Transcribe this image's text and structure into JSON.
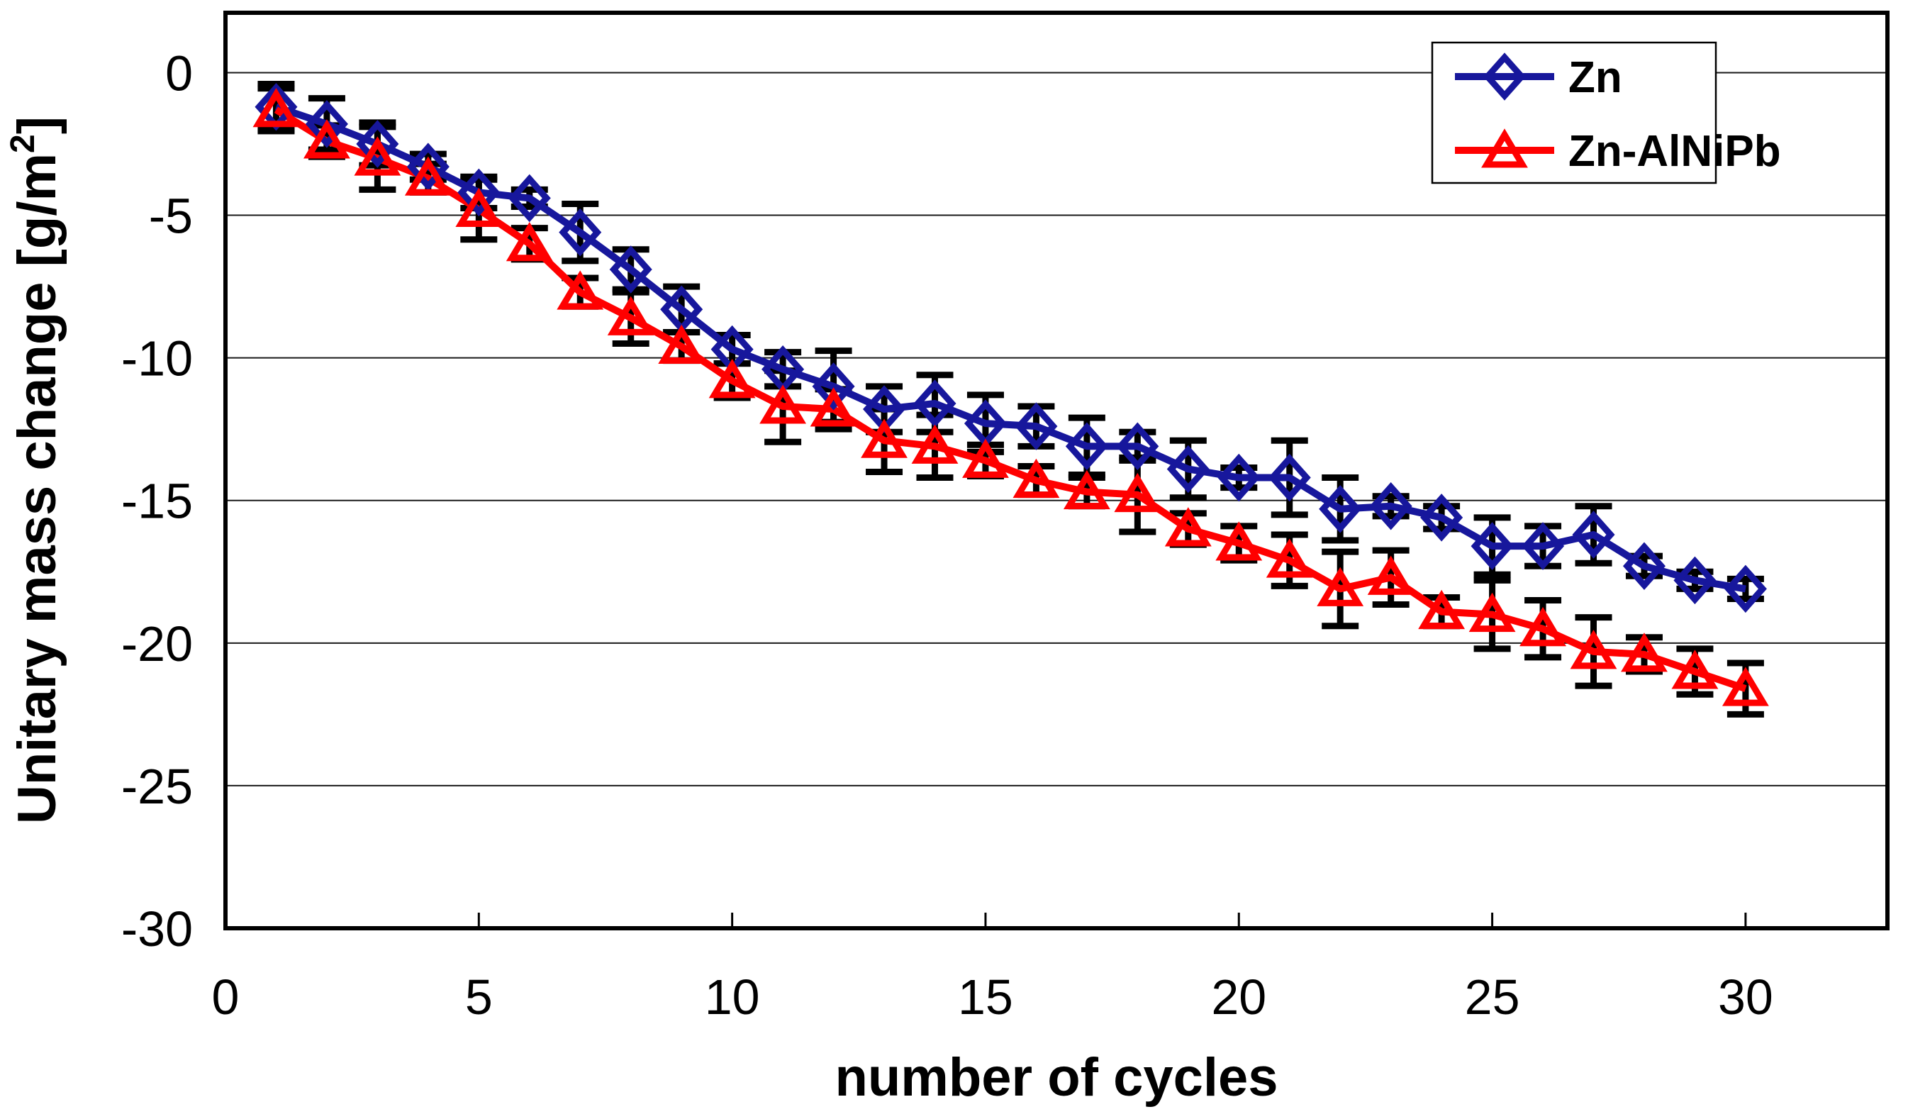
{
  "chart_data": {
    "type": "line",
    "title": "",
    "xlabel": "number of cycles",
    "ylabel": "Unitary mass change [g/m2]",
    "ylabel_prefix": "Unitary mass change [g/m",
    "ylabel_sup": "2",
    "ylabel_suffix": "]",
    "x_ticks": [
      0,
      5,
      10,
      15,
      20,
      25,
      30
    ],
    "y_ticks": [
      0,
      -5,
      -10,
      -15,
      -20,
      -25,
      -30
    ],
    "xlim": [
      0,
      32.8
    ],
    "ylim": [
      -30,
      2.1
    ],
    "grid": "horizontal",
    "legend_position": "top-right",
    "background_color": "#ffffff",
    "grid_color": "#1a1a1a",
    "frame_color": "#000000",
    "error_bar_color": "#000000",
    "x": [
      1,
      2,
      3,
      4,
      5,
      6,
      7,
      8,
      9,
      10,
      11,
      12,
      13,
      14,
      15,
      16,
      17,
      18,
      19,
      20,
      21,
      22,
      23,
      24,
      25,
      26,
      27,
      28,
      29,
      30
    ],
    "series": [
      {
        "name": "Zn",
        "color": "#17179C",
        "marker": "diamond",
        "values": [
          -1.2,
          -1.8,
          -2.5,
          -3.3,
          -4.2,
          -4.4,
          -5.6,
          -6.9,
          -8.3,
          -9.7,
          -10.4,
          -11.0,
          -11.8,
          -11.6,
          -12.3,
          -12.4,
          -13.1,
          -13.1,
          -13.9,
          -14.2,
          -14.2,
          -15.3,
          -15.2,
          -15.6,
          -16.6,
          -16.6,
          -16.2,
          -17.3,
          -17.8,
          -18.1
        ],
        "errors": [
          0.8,
          0.9,
          0.75,
          0.45,
          0.55,
          0.3,
          1.0,
          0.7,
          0.8,
          0.5,
          0.6,
          1.25,
          0.8,
          1.0,
          1.0,
          0.7,
          1.0,
          0.5,
          1.0,
          0.35,
          1.3,
          1.1,
          0.35,
          0.4,
          1.0,
          0.7,
          1.0,
          0.35,
          0.3,
          0.35
        ]
      },
      {
        "name": "Zn-AlNiPb",
        "color": "#FF0000",
        "marker": "triangle-up",
        "values": [
          -1.3,
          -2.4,
          -3.0,
          -3.7,
          -4.8,
          -6.0,
          -7.7,
          -8.6,
          -9.6,
          -10.8,
          -11.7,
          -11.8,
          -12.9,
          -13.1,
          -13.6,
          -14.3,
          -14.7,
          -14.8,
          -16.0,
          -16.5,
          -17.1,
          -18.1,
          -17.7,
          -18.9,
          -19.0,
          -19.5,
          -20.3,
          -20.4,
          -21.0,
          -21.6
        ],
        "errors": [
          0.75,
          0.55,
          1.1,
          0.5,
          1.05,
          0.55,
          0.5,
          0.9,
          0.5,
          0.6,
          1.25,
          0.7,
          1.1,
          1.1,
          0.55,
          0.5,
          0.5,
          1.3,
          0.55,
          0.6,
          0.9,
          1.3,
          0.95,
          0.5,
          1.2,
          1.0,
          1.2,
          0.6,
          0.8,
          0.9
        ]
      }
    ]
  }
}
